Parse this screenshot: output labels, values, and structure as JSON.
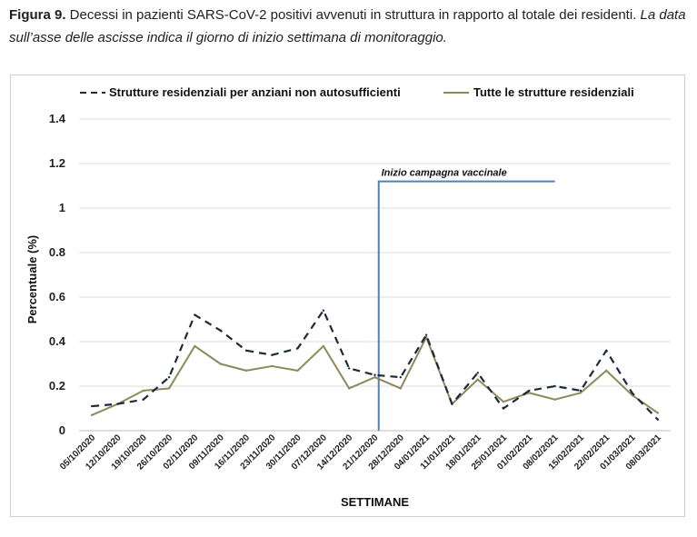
{
  "caption": {
    "figure_label": "Figura 9.",
    "text": " Decessi in pazienti SARS-CoV-2 positivi avvenuti in struttura in rapporto al totale dei residenti. ",
    "note": "La data sull’asse delle ascisse indica il giorno di inizio settimana di monitoraggio."
  },
  "chart_data": {
    "type": "line",
    "title": "",
    "xlabel": "SETTIMANE",
    "ylabel": "Percentuale (%)",
    "ylim": [
      0,
      1.4
    ],
    "yticks": [
      "0",
      "0.2",
      "0.4",
      "0.6",
      "0.8",
      "1",
      "1.2",
      "1.4"
    ],
    "grid": true,
    "legend_position": "top",
    "categories": [
      "05/10/2020",
      "12/10/2020",
      "19/10/2020",
      "26/10/2020",
      "02/11/2020",
      "09/11/2020",
      "16/11/2020",
      "23/11/2020",
      "30/11/2020",
      "07/12/2020",
      "14/12/2020",
      "21/12/2020",
      "28/12/2020",
      "04/01/2021",
      "11/01/2021",
      "18/01/2021",
      "25/01/2021",
      "01/02/2021",
      "08/02/2021",
      "15/02/2021",
      "22/02/2021",
      "01/03/2021",
      "08/03/2021"
    ],
    "series": [
      {
        "name": "Strutture residenziali per anziani non autosufficienti",
        "style": "dashed",
        "color": "#1c2a3a",
        "values": [
          0.11,
          0.12,
          0.14,
          0.24,
          0.52,
          0.45,
          0.36,
          0.34,
          0.37,
          0.54,
          0.28,
          0.25,
          0.24,
          0.43,
          0.12,
          0.26,
          0.1,
          0.18,
          0.2,
          0.18,
          0.36,
          0.17,
          0.05
        ]
      },
      {
        "name": "Tutte le strutture residenziali",
        "style": "solid",
        "color": "#8b8a5a",
        "values": [
          0.07,
          0.12,
          0.18,
          0.19,
          0.38,
          0.3,
          0.27,
          0.29,
          0.27,
          0.38,
          0.19,
          0.24,
          0.19,
          0.42,
          0.12,
          0.23,
          0.13,
          0.17,
          0.14,
          0.17,
          0.27,
          0.16,
          0.08
        ]
      }
    ],
    "annotation": {
      "text": "Inizio campagna vaccinale",
      "category": "21/12/2020",
      "y": 1.12,
      "color": "#4f81bd"
    }
  }
}
